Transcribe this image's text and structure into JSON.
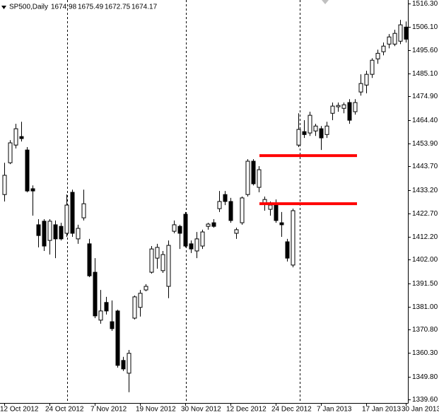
{
  "chart_data": {
    "type": "candlestick",
    "symbol": "SP500,Daily",
    "quote": [
      1674.98,
      1675.49,
      1672.75,
      1674.17
    ],
    "categories": [
      "12 Oct 2012",
      null,
      null,
      null,
      null,
      null,
      null,
      null,
      "24 Oct 2012",
      null,
      null,
      null,
      null,
      null,
      null,
      null,
      "7 Nov 2012",
      null,
      null,
      null,
      null,
      null,
      null,
      null,
      "19 Nov 2012",
      null,
      null,
      null,
      null,
      null,
      null,
      null,
      "30 Nov 2012",
      null,
      null,
      null,
      null,
      null,
      null,
      null,
      "12 Dec 2012",
      null,
      null,
      null,
      null,
      null,
      null,
      null,
      "24 Dec 2012",
      null,
      null,
      null,
      null,
      null,
      null,
      null,
      "7 Jan 2013",
      null,
      null,
      null,
      null,
      null,
      null,
      null,
      "17 Jan 2013",
      null,
      null,
      null,
      null,
      null,
      null,
      "30 Jan 2013"
    ],
    "open": [
      1431.1,
      1445.3,
      1453.2,
      1457.0,
      1451.0,
      1433.7,
      1417.6,
      1419.2,
      1410.6,
      1417.6,
      1416.9,
      1413.8,
      1432.1,
      1411.3,
      1420.7,
      1409.1,
      1396.4,
      1375.0,
      1382.9,
      1374.3,
      1379.1,
      1357.0,
      1351.3,
      1375.9,
      1380.7,
      1388.5,
      1396.4,
      1402.7,
      1397.1,
      1390.1,
      1414.7,
      1416.9,
      1422.3,
      1409.1,
      1405.9,
      1408.1,
      1416.9,
      1418.5,
      1424.8,
      1431.1,
      1428.0,
      1413.8,
      1418.5,
      1431.1,
      1446.0,
      1434.3,
      1427.0,
      1424.5,
      1426.4,
      1418.5,
      1410.0,
      1399.6,
      1453.2,
      1459.2,
      1458.6,
      1459.5,
      1460.5,
      1457.9,
      1467.4,
      1470.3,
      1469.6,
      1472.2,
      1468.1,
      1476.9,
      1480.0,
      1484.8,
      1491.7,
      1494.9,
      1498.3,
      1498.3,
      1499.6,
      1505.9
    ],
    "high": [
      1445.3,
      1455.4,
      1462.7,
      1463.6,
      1452.3,
      1435.2,
      1420.1,
      1420.1,
      1420.1,
      1419.5,
      1418.5,
      1431.1,
      1433.3,
      1417.6,
      1433.3,
      1411.3,
      1402.7,
      1388.5,
      1385.4,
      1383.8,
      1379.7,
      1358.6,
      1361.7,
      1386.0,
      1388.5,
      1391.1,
      1408.1,
      1409.1,
      1405.9,
      1410.6,
      1419.5,
      1417.6,
      1423.3,
      1410.6,
      1414.4,
      1415.4,
      1418.5,
      1420.1,
      1432.7,
      1432.7,
      1429.6,
      1416.3,
      1430.2,
      1446.9,
      1446.9,
      1443.8,
      1430.2,
      1428.0,
      1428.9,
      1423.3,
      1411.3,
      1424.8,
      1467.4,
      1464.3,
      1468.1,
      1462.7,
      1461.7,
      1463.6,
      1472.2,
      1472.2,
      1472.2,
      1473.7,
      1473.7,
      1484.8,
      1486.4,
      1492.0,
      1495.8,
      1499.0,
      1502.8,
      1504.7,
      1509.1,
      1508.4
    ],
    "low": [
      1428.0,
      1444.7,
      1451.7,
      1454.8,
      1432.1,
      1421.7,
      1407.5,
      1405.9,
      1404.3,
      1402.7,
      1410.6,
      1412.2,
      1412.2,
      1409.1,
      1419.5,
      1394.2,
      1375.9,
      1373.4,
      1377.5,
      1370.2,
      1353.8,
      1352.3,
      1342.8,
      1375.3,
      1376.6,
      1387.9,
      1395.8,
      1398.0,
      1396.1,
      1384.8,
      1413.8,
      1406.8,
      1407.5,
      1405.0,
      1402.7,
      1406.8,
      1415.4,
      1416.3,
      1423.3,
      1426.4,
      1418.5,
      1411.3,
      1417.6,
      1430.2,
      1435.2,
      1432.1,
      1423.9,
      1421.7,
      1418.5,
      1412.2,
      1401.2,
      1398.6,
      1452.3,
      1456.4,
      1457.3,
      1457.3,
      1451.0,
      1456.4,
      1464.3,
      1468.1,
      1467.4,
      1462.7,
      1466.8,
      1475.3,
      1476.3,
      1483.2,
      1489.5,
      1493.3,
      1496.4,
      1497.4,
      1498.3,
      1499.0
    ],
    "close": [
      1439.7,
      1454.2,
      1460.5,
      1456.1,
      1432.7,
      1432.7,
      1412.8,
      1408.1,
      1419.2,
      1411.3,
      1411.3,
      1426.4,
      1413.8,
      1416.0,
      1427.0,
      1394.8,
      1376.9,
      1379.1,
      1379.1,
      1371.2,
      1354.8,
      1353.2,
      1360.2,
      1385.4,
      1387.0,
      1390.1,
      1406.8,
      1407.5,
      1404.3,
      1408.4,
      1417.6,
      1413.8,
      1408.1,
      1406.8,
      1411.3,
      1414.4,
      1417.9,
      1416.9,
      1428.0,
      1428.0,
      1419.5,
      1415.4,
      1429.6,
      1446.0,
      1435.9,
      1442.2,
      1428.9,
      1426.4,
      1419.5,
      1417.6,
      1402.7,
      1423.9,
      1460.2,
      1457.9,
      1466.5,
      1461.7,
      1456.4,
      1461.7,
      1470.6,
      1470.9,
      1471.2,
      1464.3,
      1472.2,
      1480.7,
      1484.8,
      1491.1,
      1494.2,
      1497.4,
      1501.5,
      1503.1,
      1506.9,
      1500.5
    ],
    "up_color": "#ffffff",
    "down_color": "#000000",
    "line_color": "#000000",
    "levels": [
      {
        "value": 1448.5,
        "color": "#ff0000"
      },
      {
        "value": 1427.0,
        "color": "#ff0000"
      }
    ],
    "ylim": [
      1338.0,
      1518.0
    ],
    "yticks": [
      {
        "value": 1516.3,
        "label": "1516.30"
      },
      {
        "value": 1506.1,
        "label": "1506.10"
      },
      {
        "value": 1495.6,
        "label": "1495.60"
      },
      {
        "value": 1485.1,
        "label": "1485.10"
      },
      {
        "value": 1474.9,
        "label": "1474.90"
      },
      {
        "value": 1464.4,
        "label": "1464.40"
      },
      {
        "value": 1453.9,
        "label": "1453.90"
      },
      {
        "value": 1443.7,
        "label": "1443.70"
      },
      {
        "value": 1433.2,
        "label": "1433.20"
      },
      {
        "value": 1422.7,
        "label": "1422.70"
      },
      {
        "value": 1412.2,
        "label": "1412.20"
      },
      {
        "value": 1402,
        "label": "1402.00"
      },
      {
        "value": 1391.5,
        "label": "1391.50"
      },
      {
        "value": 1381,
        "label": "1381.00"
      },
      {
        "value": 1370.8,
        "label": "1370.80"
      },
      {
        "value": 1360.3,
        "label": "1360.30"
      },
      {
        "value": 1349.8,
        "label": "1349.80"
      },
      {
        "value": 1339.6,
        "label": "1339.60"
      }
    ]
  }
}
